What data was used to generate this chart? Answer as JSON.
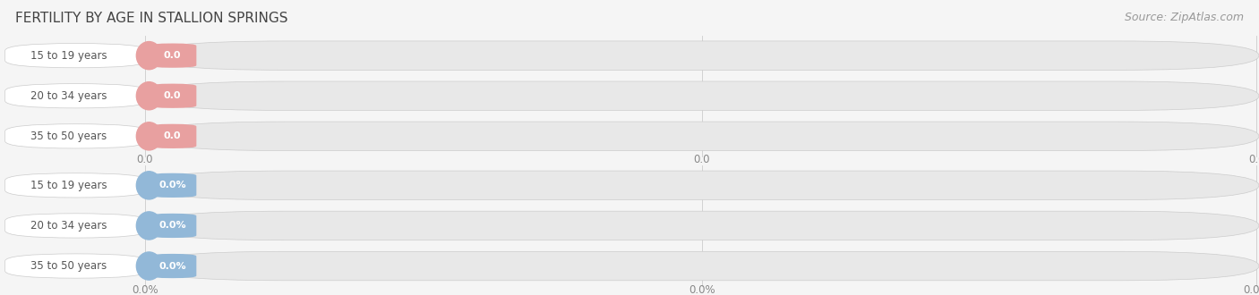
{
  "title": "FERTILITY BY AGE IN STALLION SPRINGS",
  "source": "Source: ZipAtlas.com",
  "top_section": {
    "labels": [
      "15 to 19 years",
      "20 to 34 years",
      "35 to 50 years"
    ],
    "values": [
      0.0,
      0.0,
      0.0
    ],
    "bar_color": "#e8a0a0",
    "bar_bg": "#e8e8e8",
    "value_label": "0.0",
    "axis_label": "0.0"
  },
  "bottom_section": {
    "labels": [
      "15 to 19 years",
      "20 to 34 years",
      "35 to 50 years"
    ],
    "values": [
      0.0,
      0.0,
      0.0
    ],
    "bar_color": "#92b8d8",
    "bar_bg": "#e8e8e8",
    "value_label": "0.0%",
    "axis_label": "0.0%"
  },
  "bg_color": "#f5f5f5",
  "title_color": "#444444",
  "source_color": "#999999",
  "title_fontsize": 11,
  "label_fontsize": 8.5,
  "value_fontsize": 8,
  "axis_tick_fontsize": 8.5,
  "source_fontsize": 9,
  "grid_color": "#cccccc",
  "bar_edge_color": "#cccccc",
  "label_text_color": "#555555",
  "value_text_color": "#ffffff"
}
